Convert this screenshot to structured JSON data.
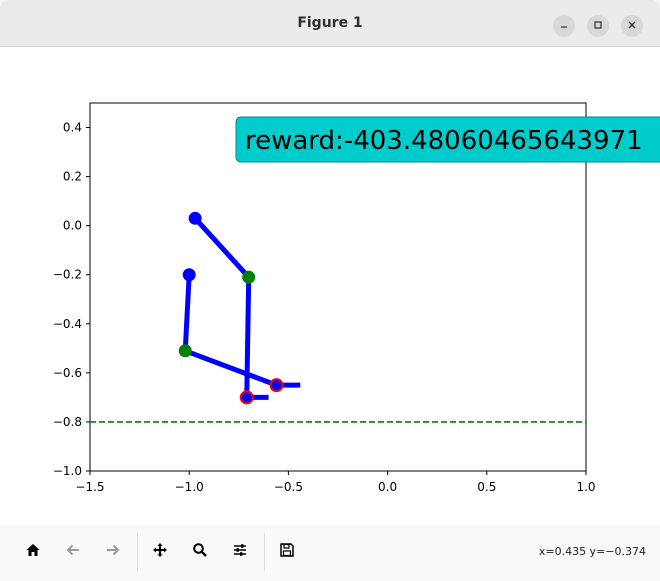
{
  "window": {
    "title": "Figure 1",
    "minimize_icon": "minimize-icon",
    "maximize_icon": "maximize-icon",
    "close_icon": "close-icon"
  },
  "annotation": {
    "text": "reward:-403.48060465643971",
    "box_color": "#00cccc"
  },
  "toolbar": {
    "buttons": [
      "home-icon",
      "back-arrow-icon",
      "forward-arrow-icon",
      "pan-move-icon",
      "zoom-magnifier-icon",
      "configure-subplots-icon",
      "save-floppy-icon"
    ],
    "coords": "x=0.435 y=−0.374"
  },
  "chart_data": {
    "type": "line",
    "xlim": [
      -1.5,
      1.0
    ],
    "ylim": [
      -1.0,
      0.5
    ],
    "x_ticks": [
      -1.5,
      -1.0,
      -0.5,
      0.0,
      0.5,
      1.0
    ],
    "x_tick_labels": [
      "−1.5",
      "−1.0",
      "−0.5",
      "0.0",
      "0.5",
      "1.0"
    ],
    "y_ticks": [
      -1.0,
      -0.8,
      -0.6,
      -0.4,
      -0.2,
      0.0,
      0.2,
      0.4
    ],
    "y_tick_labels": [
      "−1.0",
      "−0.8",
      "−0.6",
      "−0.4",
      "−0.2",
      "0.0",
      "0.2",
      "0.4"
    ],
    "grid": false,
    "ground_line": {
      "y": -0.8,
      "color": "#008000",
      "style": "dashed"
    },
    "link_color": "#0000ff",
    "links": [
      {
        "name": "leg-1-thigh",
        "points": [
          [
            -0.97,
            0.03
          ],
          [
            -0.7,
            -0.21
          ]
        ]
      },
      {
        "name": "leg-1-shin",
        "points": [
          [
            -0.7,
            -0.21
          ],
          [
            -0.71,
            -0.7
          ]
        ]
      },
      {
        "name": "leg-1-foot",
        "points": [
          [
            -0.71,
            -0.7
          ],
          [
            -0.6,
            -0.7
          ]
        ]
      },
      {
        "name": "leg-2-thigh",
        "points": [
          [
            -1.0,
            -0.2
          ],
          [
            -1.02,
            -0.51
          ]
        ]
      },
      {
        "name": "leg-2-shin",
        "points": [
          [
            -1.02,
            -0.51
          ],
          [
            -0.56,
            -0.65
          ]
        ]
      },
      {
        "name": "leg-2-foot",
        "points": [
          [
            -0.56,
            -0.65
          ],
          [
            -0.44,
            -0.65
          ]
        ]
      }
    ],
    "joints": [
      {
        "name": "hip-joint-1",
        "x": -0.97,
        "y": 0.03,
        "color": "#0000ff"
      },
      {
        "name": "hip-joint-2",
        "x": -1.0,
        "y": -0.2,
        "color": "#0000ff"
      },
      {
        "name": "knee-joint-1",
        "x": -0.7,
        "y": -0.21,
        "color": "#008000"
      },
      {
        "name": "knee-joint-2",
        "x": -1.02,
        "y": -0.51,
        "color": "#008000"
      },
      {
        "name": "ankle-joint-1",
        "x": -0.71,
        "y": -0.7,
        "color": "#0000ff",
        "edge": "#ff0000"
      },
      {
        "name": "ankle-joint-2",
        "x": -0.56,
        "y": -0.65,
        "color": "#0000ff",
        "edge": "#ff0000"
      }
    ]
  }
}
